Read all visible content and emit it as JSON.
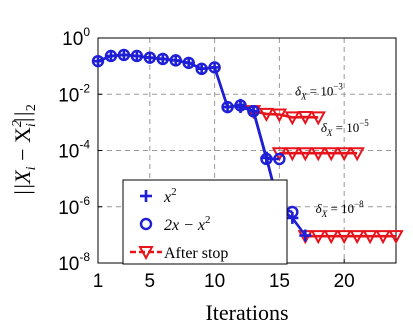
{
  "chart_data": {
    "type": "line",
    "xlabel": "Iterations",
    "ylabel": "||X_i − X_i^2||_2",
    "xlim": [
      1,
      24
    ],
    "ylim_exponents": [
      -8,
      0
    ],
    "y_scale": "log",
    "x_ticks": [
      1,
      5,
      10,
      15,
      20
    ],
    "y_ticks": [
      {
        "base": "10",
        "exp": "0",
        "value": 1
      },
      {
        "base": "10",
        "exp": "-2",
        "value": 0.01
      },
      {
        "base": "10",
        "exp": "-4",
        "value": 0.0001
      },
      {
        "base": "10",
        "exp": "-6",
        "value": 1e-06
      },
      {
        "base": "10",
        "exp": "-8",
        "value": 1e-08
      }
    ],
    "grid": true,
    "legend_position": "bottom-left",
    "series": [
      {
        "name": "x^2",
        "label_base": "x",
        "label_sup": "2",
        "marker": "plus",
        "color": "#1f1fd6",
        "segments": [
          {
            "x": [
              1,
              2,
              3,
              4,
              5,
              6,
              7,
              8,
              9,
              10,
              11,
              12,
              13,
              14,
              15
            ],
            "y": [
              0.15,
              0.23,
              0.25,
              0.23,
              0.2,
              0.18,
              0.16,
              0.13,
              0.08,
              0.09,
              0.0035,
              0.0042,
              0.0025,
              5.5e-05,
              9e-07
            ]
          },
          {
            "x": [
              12,
              13,
              14,
              15
            ],
            "y": [
              0.0035,
              0.0025,
              5.5e-05,
              9e-07
            ]
          },
          {
            "x": [
              14,
              15,
              16,
              17
            ],
            "y": [
              5.5e-05,
              9e-07,
              4e-07,
              9.5e-08
            ]
          }
        ]
      },
      {
        "name": "2x − x^2",
        "label_base": "2x − x",
        "label_sup": "2",
        "marker": "circle",
        "color": "#1f1fd6",
        "segments": [
          {
            "x": [
              1,
              2,
              3,
              4,
              5,
              6,
              7,
              8,
              9,
              10,
              11,
              12,
              13
            ],
            "y": [
              0.15,
              0.23,
              0.25,
              0.23,
              0.2,
              0.18,
              0.16,
              0.13,
              0.08,
              0.09,
              0.0035,
              0.004,
              0.0025
            ]
          },
          {
            "x": [
              13,
              14,
              15
            ],
            "y": [
              0.0025,
              5e-05,
              5e-05
            ]
          },
          {
            "x": [
              15,
              16
            ],
            "y": [
              9e-07,
              6.5e-07
            ]
          }
        ]
      },
      {
        "name": "After stop",
        "marker": "triangle-down",
        "color": "#e8141c",
        "segments": [
          {
            "x": [
              13,
              14,
              15,
              16,
              17,
              18
            ],
            "y": [
              0.0025,
              0.002,
              0.0019,
              0.0015,
              0.00155,
              0.0015
            ]
          },
          {
            "x": [
              15,
              16,
              17,
              18,
              19,
              20,
              21
            ],
            "y": [
              8e-05,
              8e-05,
              8e-05,
              8e-05,
              8e-05,
              8e-05,
              8e-05
            ]
          },
          {
            "x": [
              17,
              18,
              19,
              20,
              21,
              22,
              23,
              24
            ],
            "y": [
              9e-08,
              9e-08,
              9e-08,
              9e-08,
              9e-08,
              9e-08,
              9e-08,
              9e-08
            ]
          }
        ]
      }
    ],
    "annotations": [
      {
        "text": "δ_X = 10^-3",
        "base": "δ",
        "sub": "X",
        "mid": " = 10",
        "sup": "−3",
        "x": 16.2,
        "y": 0.009
      },
      {
        "text": "δ_X = 10^-5",
        "base": "δ",
        "sub": "X",
        "mid": " = 10",
        "sup": "−5",
        "x": 18.2,
        "y": 0.00045
      },
      {
        "text": "δ_X = 10^-8",
        "base": "δ",
        "sub": "X",
        "mid": " = 10",
        "sup": "−8",
        "x": 17.8,
        "y": 6e-07
      }
    ]
  }
}
